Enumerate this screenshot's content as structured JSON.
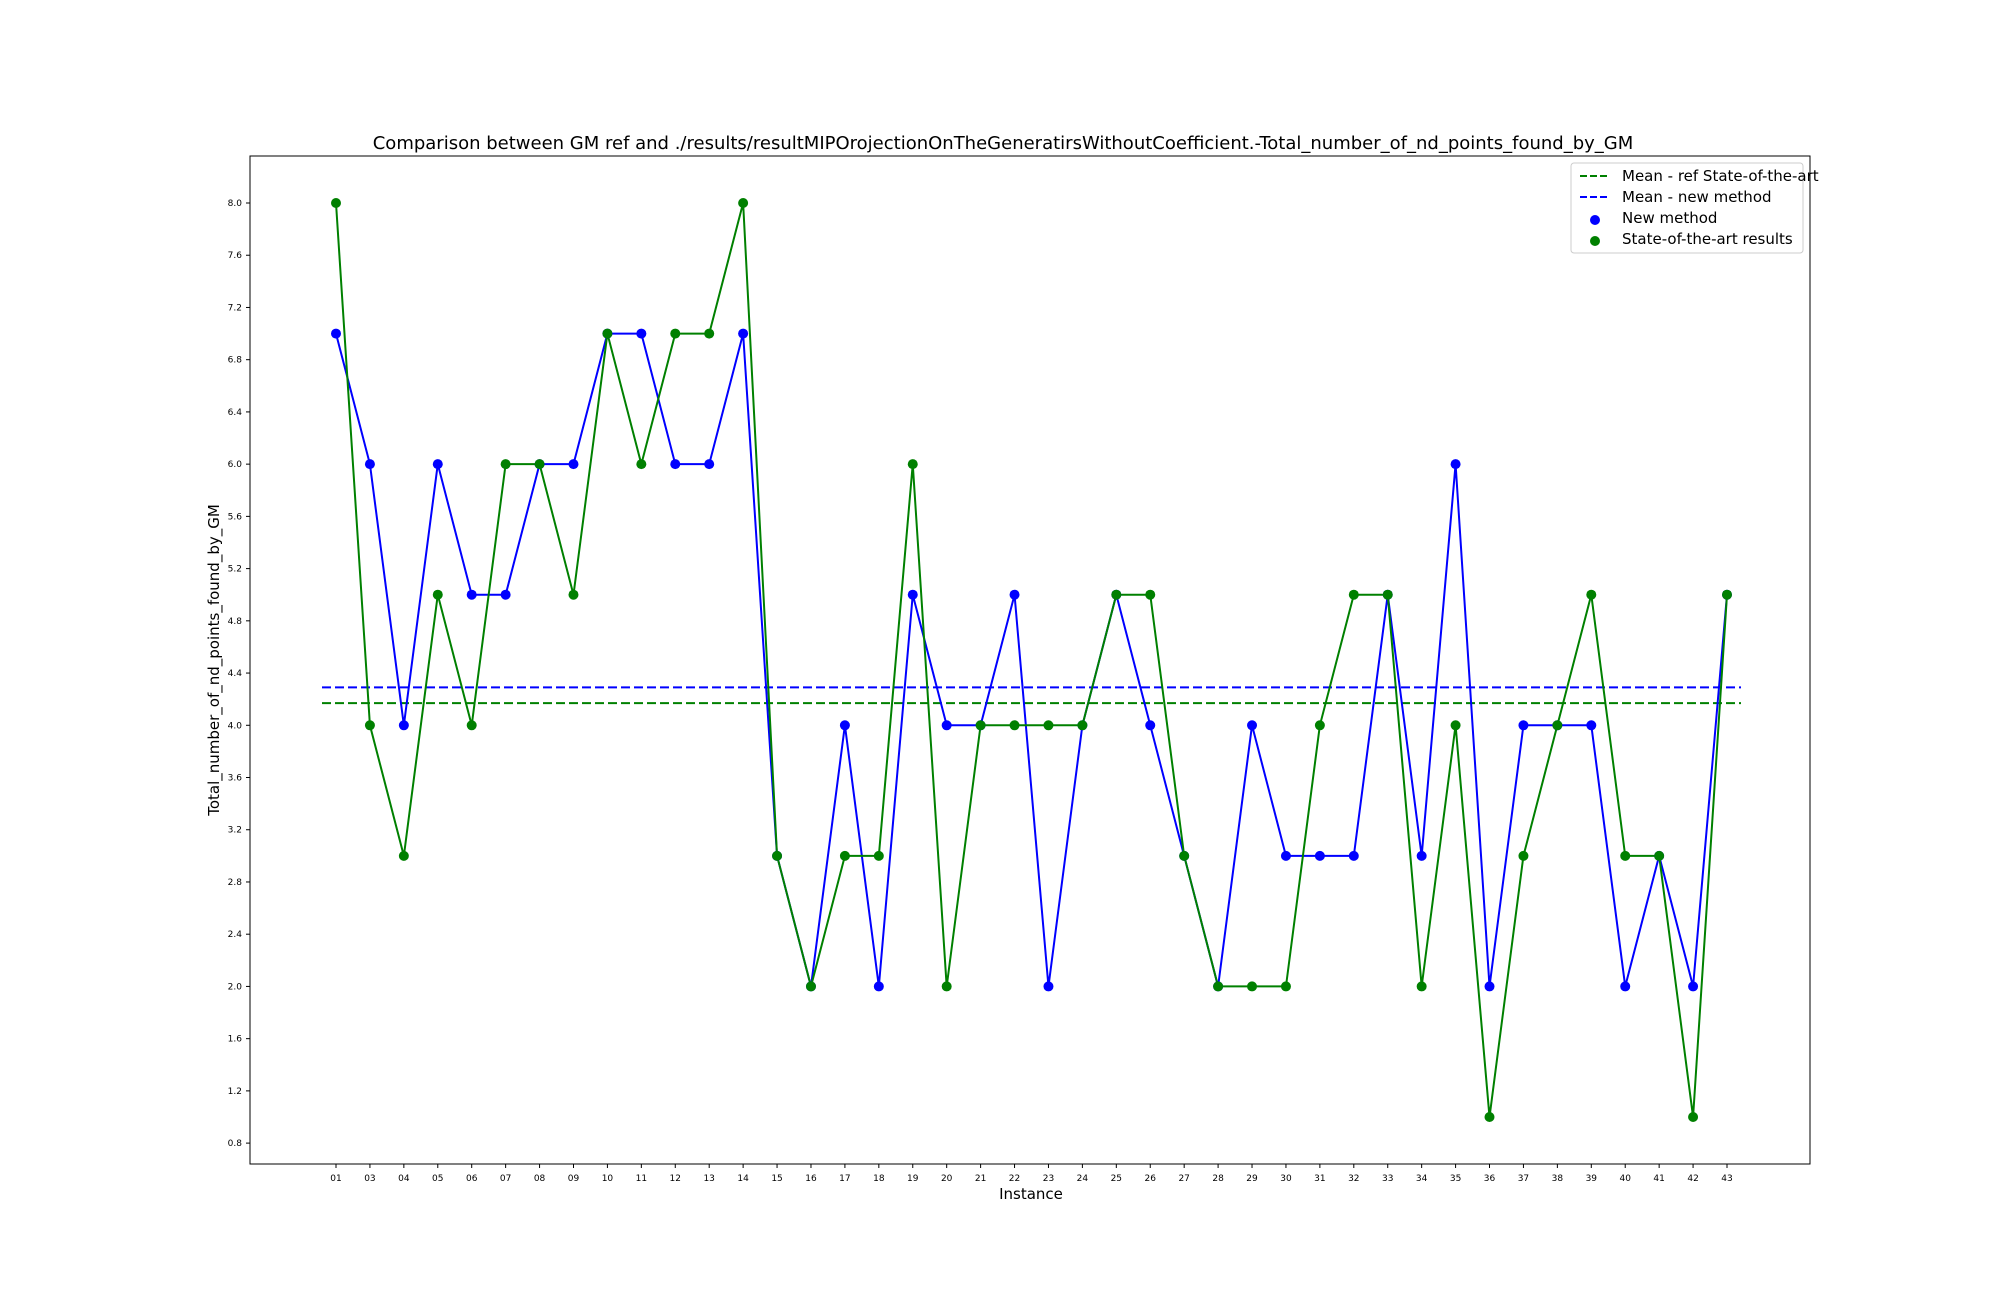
{
  "chart_data": {
    "type": "line",
    "title": "Comparison between GM ref and ./results/resultMIPOrojectionOnTheGeneratirsWithoutCoefficient.-Total_number_of_nd_points_found_by_GM",
    "xlabel": "Instance",
    "ylabel": "Total_number_of_nd_points_found_by_GM",
    "categories": [
      "01",
      "03",
      "04",
      "05",
      "06",
      "07",
      "08",
      "09",
      "10",
      "11",
      "12",
      "13",
      "14",
      "15",
      "16",
      "17",
      "18",
      "19",
      "20",
      "21",
      "22",
      "23",
      "24",
      "25",
      "26",
      "27",
      "28",
      "29",
      "30",
      "31",
      "32",
      "33",
      "34",
      "35",
      "36",
      "37",
      "38",
      "39",
      "40",
      "41",
      "42",
      "43"
    ],
    "ylim": [
      0.64,
      8.36
    ],
    "yticks": [
      "0.8",
      "1.2",
      "1.6",
      "2.0",
      "2.4",
      "2.8",
      "3.2",
      "3.6",
      "4.0",
      "4.4",
      "4.8",
      "5.2",
      "5.6",
      "6.0",
      "6.4",
      "6.8",
      "7.2",
      "7.6",
      "8.0"
    ],
    "grid": false,
    "legend_position": "top-right",
    "series": [
      {
        "name": "New method",
        "color": "#0000ff",
        "values": [
          7,
          6,
          4,
          6,
          5,
          5,
          6,
          6,
          7,
          7,
          6,
          6,
          7,
          3,
          2,
          4,
          2,
          5,
          4,
          4,
          5,
          2,
          4,
          5,
          4,
          3,
          2,
          4,
          3,
          3,
          3,
          5,
          3,
          6,
          2,
          4,
          4,
          4,
          2,
          3,
          2,
          5
        ],
        "mean": 4.29
      },
      {
        "name": "State-of-the-art results",
        "color": "#008000",
        "values": [
          8,
          4,
          3,
          5,
          4,
          6,
          6,
          5,
          7,
          6,
          7,
          7,
          8,
          3,
          2,
          3,
          3,
          6,
          2,
          4,
          4,
          4,
          4,
          5,
          5,
          3,
          2,
          2,
          2,
          4,
          5,
          5,
          2,
          4,
          1,
          3,
          4,
          5,
          3,
          3,
          1,
          5
        ],
        "mean": 4.17
      }
    ],
    "legend": [
      {
        "label": "Mean - ref State-of-the-art",
        "kind": "dashed-line",
        "color": "#008000"
      },
      {
        "label": "Mean - new method",
        "kind": "dashed-line",
        "color": "#0000ff"
      },
      {
        "label": "New method",
        "kind": "marker",
        "color": "#0000ff"
      },
      {
        "label": "State-of-the-art results",
        "kind": "marker",
        "color": "#008000"
      }
    ]
  }
}
